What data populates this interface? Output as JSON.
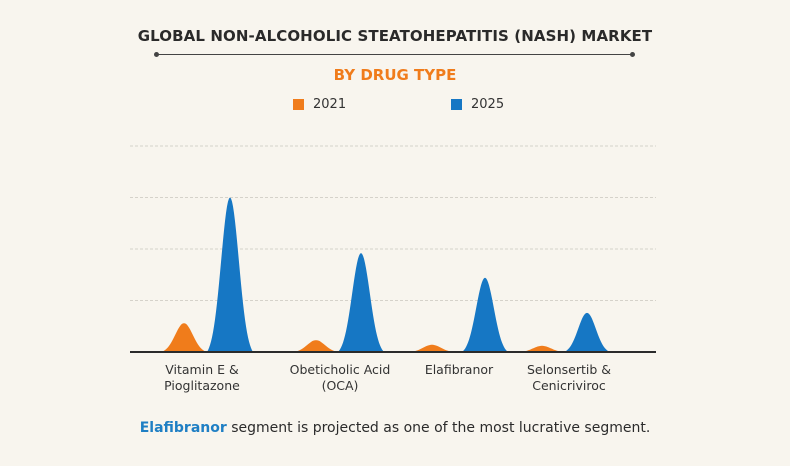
{
  "chart_data": {
    "type": "area",
    "title": "GLOBAL NON-ALCOHOLIC STEATOHEPATITIS (NASH) MARKET",
    "subtitle": "BY DRUG TYPE",
    "xlabel": "",
    "ylabel": "",
    "ylim": [
      0,
      4
    ],
    "grid": true,
    "legend_position": "top-center",
    "categories": [
      "Vitamin E & Pioglitazone",
      "Obeticholic Acid (OCA)",
      "Elafibranor",
      "Selonsertib & Cenicriviroc"
    ],
    "category_lines": [
      [
        "Vitamin E &",
        "Pioglitazone"
      ],
      [
        "Obeticholic Acid",
        "(OCA)"
      ],
      [
        "Elafibranor",
        ""
      ],
      [
        "Selonsertib &",
        "Cenicriviroc"
      ]
    ],
    "series": [
      {
        "name": "2021",
        "color": "#f07c1b",
        "values": [
          0.56,
          0.23,
          0.14,
          0.12
        ]
      },
      {
        "name": "2025",
        "color": "#1677c4",
        "values": [
          3.0,
          1.92,
          1.44,
          0.76
        ]
      }
    ]
  },
  "footer": {
    "highlight": "Elafibranor",
    "text": " segment is projected as one of the most lucrative segment."
  }
}
